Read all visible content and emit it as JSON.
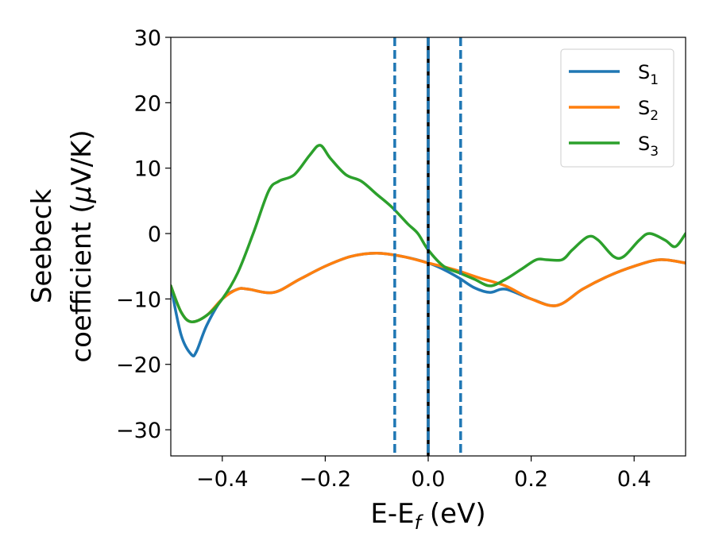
{
  "chart_data": {
    "type": "line",
    "xlabel": {
      "main": "E-E",
      "sub": "f",
      "suffix": " (eV)"
    },
    "ylabel": {
      "line1": "Seebeck",
      "line2_prefix": "coefficient  (",
      "line2_mu": "μ",
      "line2_suffix": "V/K)"
    },
    "xlim": [
      -0.5,
      0.5
    ],
    "ylim": [
      -34,
      30
    ],
    "xticks": [
      -0.4,
      -0.2,
      0.0,
      0.2,
      0.4
    ],
    "xtick_labels": [
      "−0.4",
      "−0.2",
      "0.0",
      "0.2",
      "0.4"
    ],
    "yticks": [
      -30,
      -20,
      -10,
      0,
      10,
      20,
      30
    ],
    "ytick_labels": [
      "−30",
      "−20",
      "−10",
      "0",
      "10",
      "20",
      "30"
    ],
    "grid": false,
    "legend_position": "top-right",
    "vlines": [
      {
        "x": -0.065,
        "style": "dashed",
        "color": "#1f77b4"
      },
      {
        "x": 0.0,
        "style": "solid",
        "color": "#000000"
      },
      {
        "x": 0.0,
        "style": "dashed",
        "color": "#1f77b4"
      },
      {
        "x": 0.063,
        "style": "dashed",
        "color": "#1f77b4"
      }
    ],
    "series": [
      {
        "name": "S",
        "sub": "1",
        "color": "#1f77b4",
        "x": [
          -0.5,
          -0.48,
          -0.46,
          -0.45,
          -0.43,
          -0.4,
          -0.37,
          -0.35,
          -0.3,
          -0.25,
          -0.2,
          -0.15,
          -0.1,
          -0.05,
          0.0,
          0.03,
          0.06,
          0.09,
          0.12,
          0.15,
          0.2,
          0.25,
          0.3,
          0.35,
          0.4,
          0.45,
          0.5
        ],
        "y": [
          -8,
          -15.5,
          -18.5,
          -18,
          -14,
          -10,
          -8.5,
          -8.5,
          -9,
          -7,
          -5,
          -3.5,
          -3,
          -3.5,
          -4.5,
          -5.5,
          -6.8,
          -8.3,
          -9,
          -8.5,
          -10,
          -11,
          -8.5,
          -6.5,
          -5,
          -4,
          -4.5
        ]
      },
      {
        "name": "S",
        "sub": "2",
        "color": "#ff7f0e",
        "x": [
          -0.5,
          -0.48,
          -0.46,
          -0.43,
          -0.4,
          -0.37,
          -0.35,
          -0.3,
          -0.25,
          -0.2,
          -0.15,
          -0.1,
          -0.05,
          0.0,
          0.05,
          0.1,
          0.15,
          0.2,
          0.25,
          0.3,
          0.35,
          0.4,
          0.45,
          0.5
        ],
        "y": [
          -8,
          -12,
          -13.5,
          -12.5,
          -10,
          -8.5,
          -8.5,
          -9,
          -7,
          -5,
          -3.5,
          -3,
          -3.5,
          -4.5,
          -5.5,
          -6.8,
          -8,
          -10,
          -11,
          -8.5,
          -6.5,
          -5,
          -4,
          -4.5
        ]
      },
      {
        "name": "S",
        "sub": "3",
        "color": "#2ca02c",
        "x": [
          -0.5,
          -0.48,
          -0.46,
          -0.43,
          -0.4,
          -0.37,
          -0.34,
          -0.31,
          -0.29,
          -0.26,
          -0.23,
          -0.21,
          -0.19,
          -0.16,
          -0.13,
          -0.1,
          -0.07,
          -0.04,
          -0.02,
          0.0,
          0.03,
          0.06,
          0.09,
          0.12,
          0.15,
          0.18,
          0.21,
          0.23,
          0.26,
          0.28,
          0.31,
          0.33,
          0.36,
          0.38,
          0.41,
          0.43,
          0.46,
          0.48,
          0.5
        ],
        "y": [
          -8,
          -12,
          -13.5,
          -12.5,
          -10,
          -6,
          0,
          6.5,
          8,
          9,
          12,
          13.5,
          11.5,
          9,
          8,
          6,
          4,
          1.5,
          0,
          -2.5,
          -5,
          -6,
          -7,
          -8,
          -7,
          -5.5,
          -4,
          -4,
          -4,
          -2.5,
          -0.5,
          -1,
          -3.5,
          -3.5,
          -1,
          0,
          -1,
          -2,
          0
        ]
      }
    ]
  }
}
